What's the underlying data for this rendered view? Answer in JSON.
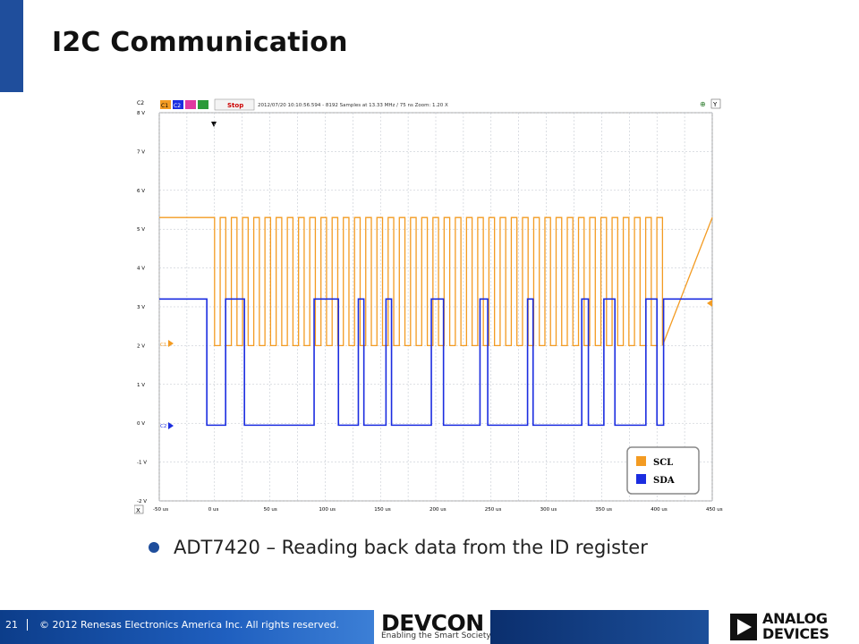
{
  "slide": {
    "title": "I2C Communication",
    "bullet": "ADT7420 – Reading back data from the ID register"
  },
  "scope": {
    "toolbar": {
      "c1": "C1",
      "c2": "C2",
      "stop_label": "Stop",
      "status": "2012/07/20 10:10:56.594 - 8192 Samples at 13.33 MHz / 75 ns Zoom: 1.20 X",
      "y_label": "Y",
      "x_label": "X",
      "channel_axis_label": "C2"
    },
    "y_ticks": [
      "8 V",
      "7 V",
      "6 V",
      "5 V",
      "4 V",
      "3 V",
      "2 V",
      "1 V",
      "0 V",
      "-1 V",
      "-2 V"
    ],
    "x_ticks": [
      "-50 us",
      "0 us",
      "50 us",
      "100 us",
      "150 us",
      "200 us",
      "250 us",
      "300 us",
      "350 us",
      "400 us",
      "450 us"
    ],
    "legend": [
      {
        "label": "SCL",
        "color": "#f39b22"
      },
      {
        "label": "SDA",
        "color": "#1b2de0"
      }
    ],
    "colors": {
      "scl": "#f39b22",
      "sda": "#1b2de0",
      "grid": "#b9bfc9"
    },
    "markers": {
      "c1": "C1",
      "c2": "C2"
    }
  },
  "footer": {
    "page_number": "21",
    "copyright": "© 2012 Renesas Electronics America Inc. All rights reserved.",
    "devcon_logo": "DEVCON",
    "devcon_tagline": "Enabling the Smart Society",
    "adi_logo_line1": "ANALOG",
    "adi_logo_line2": "DEVICES"
  }
}
